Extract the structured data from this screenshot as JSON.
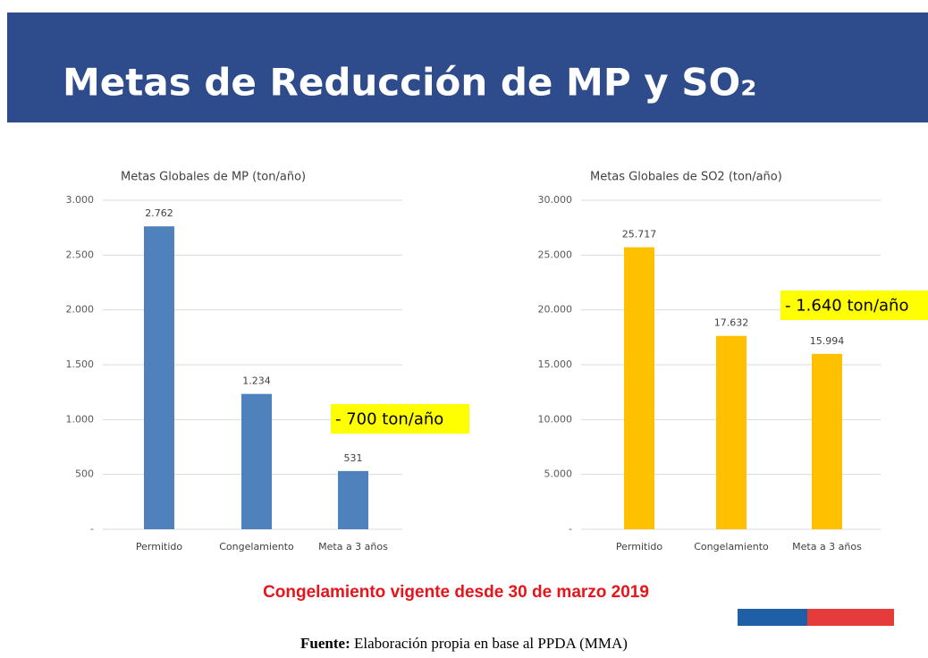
{
  "slide_title": "Metas de Reducción de MP y SO₂",
  "chart_data": [
    {
      "type": "bar",
      "title": "Metas Globales de MP (ton/año)",
      "categories": [
        "Permitido",
        "Congelamiento",
        "Meta a 3 años"
      ],
      "values": [
        2762,
        1234,
        531
      ],
      "value_labels": [
        "2.762",
        "1.234",
        "531"
      ],
      "color": "#4f81bd",
      "ylim": [
        0,
        3000
      ],
      "yticks": [
        {
          "value": 0,
          "label": "-"
        },
        500,
        {
          "value": 1000,
          "label": "1.000"
        },
        {
          "value": 1500,
          "label": "1.500"
        },
        {
          "value": 2000,
          "label": "2.000"
        },
        {
          "value": 2500,
          "label": "2.500"
        },
        {
          "value": 3000,
          "label": "3.000"
        }
      ],
      "grid": true,
      "annotation": "- 700 ton/año"
    },
    {
      "type": "bar",
      "title": "Metas Globales de SO2 (ton/año)",
      "categories": [
        "Permitido",
        "Congelamiento",
        "Meta a 3 años"
      ],
      "values": [
        25717,
        17632,
        15994
      ],
      "value_labels": [
        "25.717",
        "17.632",
        "15.994"
      ],
      "color": "#ffc000",
      "ylim": [
        0,
        30000
      ],
      "yticks": [
        {
          "value": 0,
          "label": "-"
        },
        {
          "value": 5000,
          "label": "5.000"
        },
        {
          "value": 10000,
          "label": "10.000"
        },
        {
          "value": 15000,
          "label": "15.000"
        },
        {
          "value": 20000,
          "label": "20.000"
        },
        {
          "value": 25000,
          "label": "25.000"
        },
        {
          "value": 30000,
          "label": "30.000"
        }
      ],
      "grid": true,
      "annotation": "- 1.640 ton/año"
    }
  ],
  "footer_note": "Congelamiento vigente desde 30 de marzo 2019",
  "source": {
    "label": "Fuente:",
    "text": " Elaboración propia en base al PPDA (MMA)"
  }
}
